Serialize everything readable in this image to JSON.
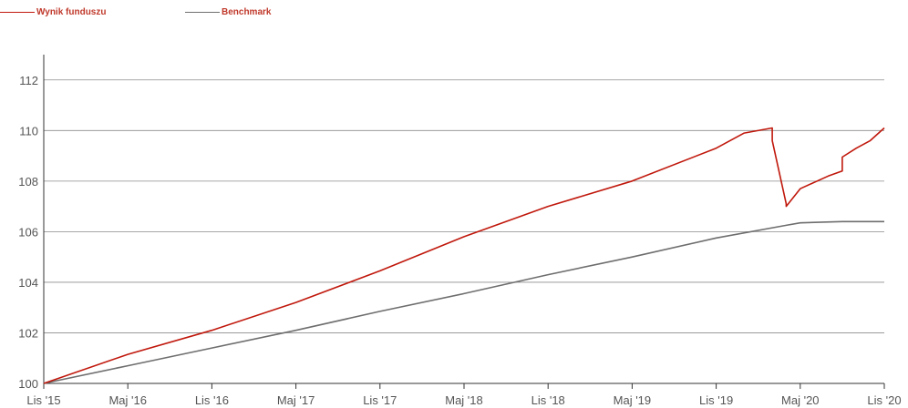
{
  "legend": [
    {
      "label": "Wynik funduszu",
      "color": "#c0180c"
    },
    {
      "label": "Benchmark",
      "color": "#6e6e6e"
    }
  ],
  "chart_data": {
    "type": "line",
    "ylim": [
      100,
      113
    ],
    "yticks": [
      100,
      102,
      104,
      106,
      108,
      110,
      112
    ],
    "xticks": [
      "Lis '15",
      "Maj '16",
      "Lis '16",
      "Maj '17",
      "Lis '17",
      "Maj '18",
      "Lis '18",
      "Maj '19",
      "Lis '19",
      "Maj '20",
      "Lis '20"
    ],
    "grid": "horizontal",
    "legend_position": "top-left",
    "series": [
      {
        "name": "Wynik funduszu",
        "color": "#c0180c",
        "points": [
          [
            "Lis '15",
            100.0
          ],
          [
            "Maj '16",
            101.15
          ],
          [
            "Lis '16",
            102.1
          ],
          [
            "Maj '17",
            103.2
          ],
          [
            "Lis '17",
            104.45
          ],
          [
            "Maj '18",
            105.8
          ],
          [
            "Lis '18",
            107.0
          ],
          [
            "Maj '19",
            108.0
          ],
          [
            "Lis '19",
            109.3
          ],
          [
            "Sty '20",
            109.9
          ],
          [
            "Mar '20",
            110.1
          ],
          [
            "Mar '20",
            109.6
          ],
          [
            "Kwi '20",
            107.1
          ],
          [
            "Kwi '20",
            107.0
          ],
          [
            "Maj '20",
            107.7
          ],
          [
            "Lip '20",
            108.2
          ],
          [
            "Sie '20",
            108.4
          ],
          [
            "Sie '20",
            108.95
          ],
          [
            "Wrz '20",
            109.3
          ],
          [
            "Paź '20",
            109.6
          ],
          [
            "Lis '20",
            110.1
          ]
        ]
      },
      {
        "name": "Benchmark",
        "color": "#6e6e6e",
        "points": [
          [
            "Lis '15",
            100.0
          ],
          [
            "Maj '16",
            100.7
          ],
          [
            "Lis '16",
            101.4
          ],
          [
            "Maj '17",
            102.1
          ],
          [
            "Lis '17",
            102.85
          ],
          [
            "Maj '18",
            103.55
          ],
          [
            "Lis '18",
            104.3
          ],
          [
            "Maj '19",
            105.0
          ],
          [
            "Lis '19",
            105.75
          ],
          [
            "Kwi '20",
            106.25
          ],
          [
            "Maj '20",
            106.35
          ],
          [
            "Sie '20",
            106.4
          ],
          [
            "Lis '20",
            106.4
          ]
        ]
      }
    ]
  }
}
